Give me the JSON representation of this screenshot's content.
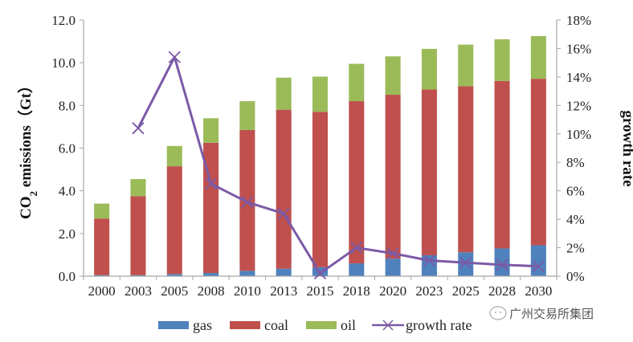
{
  "chart_data": {
    "type": "bar",
    "stacked": true,
    "categories": [
      "2000",
      "2003",
      "2005",
      "2008",
      "2010",
      "2013",
      "2015",
      "2018",
      "2020",
      "2023",
      "2025",
      "2028",
      "2030"
    ],
    "series": [
      {
        "name": "gas",
        "color": "#4f81bd",
        "axis": "left",
        "values": [
          0.05,
          0.05,
          0.1,
          0.15,
          0.25,
          0.35,
          0.42,
          0.6,
          0.82,
          0.98,
          1.12,
          1.3,
          1.45
        ]
      },
      {
        "name": "coal",
        "color": "#c0504d",
        "axis": "left",
        "values": [
          2.65,
          3.7,
          5.05,
          6.1,
          6.6,
          7.45,
          7.28,
          7.6,
          7.68,
          7.77,
          7.78,
          7.85,
          7.8
        ]
      },
      {
        "name": "oil",
        "color": "#9bbb59",
        "axis": "left",
        "values": [
          0.7,
          0.8,
          0.95,
          1.15,
          1.35,
          1.5,
          1.65,
          1.75,
          1.8,
          1.9,
          1.95,
          1.95,
          2.0
        ]
      }
    ],
    "line_series": {
      "name": "growth rate",
      "type": "line",
      "color": "#7b5aa6",
      "axis": "right",
      "marker": "x",
      "values": [
        null,
        10.4,
        15.4,
        6.5,
        5.2,
        4.4,
        0.2,
        2.0,
        1.6,
        1.1,
        0.95,
        0.8,
        0.7
      ]
    },
    "title": "",
    "xlabel": "",
    "ylabel": "CO2 emissions（Gt）",
    "ylabel_main": "CO",
    "ylabel_sub": "2",
    "ylabel_rest": " emissions（Gt）",
    "y2label": "growth rate",
    "ylim": [
      0,
      12
    ],
    "yticks": [
      0,
      2,
      4,
      6,
      8,
      10,
      12
    ],
    "ytick_labels": [
      "0.0",
      "2.0",
      "4.0",
      "6.0",
      "8.0",
      "10.0",
      "12.0"
    ],
    "y2lim": [
      0,
      18
    ],
    "y2ticks": [
      0,
      2,
      4,
      6,
      8,
      10,
      12,
      14,
      16,
      18
    ],
    "y2tick_labels": [
      "0%",
      "2%",
      "4%",
      "6%",
      "8%",
      "10%",
      "12%",
      "14%",
      "16%",
      "18%"
    ],
    "grid": false,
    "legend": {
      "placement": "bottom",
      "entries": [
        "gas",
        "coal",
        "oil",
        "growth rate"
      ]
    }
  },
  "watermark": {
    "text": "广州交易所集团",
    "icon": "wechat-logo-icon"
  }
}
